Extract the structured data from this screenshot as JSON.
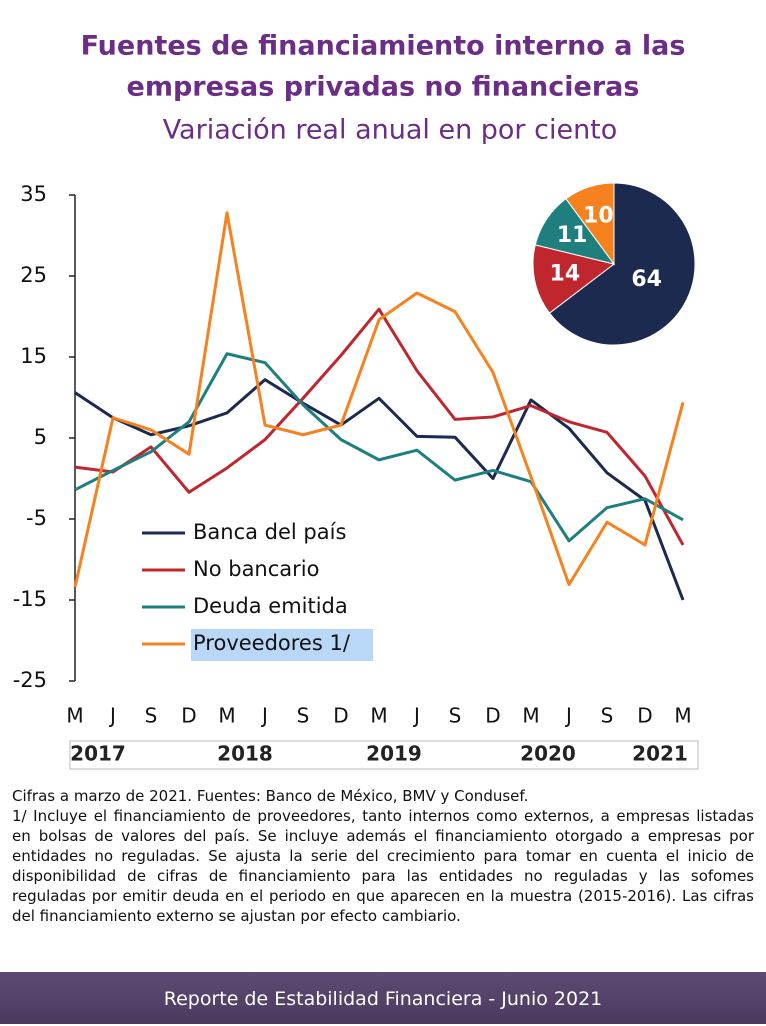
{
  "chart_data": [
    {
      "type": "line",
      "title": "Fuentes de financiamiento interno a las empresas privadas no financieras",
      "subtitle": "Variación real anual en por ciento",
      "categories": [
        "M",
        "J",
        "S",
        "D",
        "M",
        "J",
        "S",
        "D",
        "M",
        "J",
        "S",
        "D",
        "M",
        "J",
        "S",
        "D",
        "M"
      ],
      "year_labels": [
        "2017",
        "2018",
        "2019",
        "2020",
        "2021"
      ],
      "series": [
        {
          "name": "Banca del país",
          "color": "#1c2a4f",
          "values": [
            10.6,
            7.5,
            5.4,
            6.5,
            8.1,
            12.2,
            9.3,
            6.6,
            9.9,
            5.2,
            5.1,
            0.0,
            9.7,
            6.2,
            0.7,
            -2.7,
            -15.0
          ]
        },
        {
          "name": "No bancario",
          "color": "#c0262d",
          "values": [
            1.4,
            0.8,
            3.9,
            -1.7,
            1.3,
            4.8,
            9.9,
            15.2,
            20.9,
            13.3,
            7.3,
            7.6,
            9.0,
            7.0,
            5.7,
            0.3,
            -8.2
          ]
        },
        {
          "name": "Deuda emitida",
          "color": "#1f7f7f",
          "values": [
            -1.4,
            1.0,
            3.3,
            7.0,
            15.4,
            14.3,
            9.1,
            4.8,
            2.3,
            3.5,
            -0.2,
            1.0,
            -0.4,
            -7.7,
            -3.6,
            -2.5,
            -5.1
          ]
        },
        {
          "name": "Proveedores 1/",
          "color": "#f5821f",
          "values": [
            -13.4,
            7.5,
            6.0,
            3.0,
            32.8,
            6.6,
            5.4,
            6.6,
            19.6,
            22.9,
            20.6,
            13.1,
            0.2,
            -13.1,
            -5.4,
            -8.2,
            9.4
          ]
        }
      ],
      "ylim": [
        -25,
        35
      ],
      "yticks": [
        -25,
        -15,
        -5,
        5,
        15,
        25,
        35
      ],
      "grid": false,
      "legend": "lower-left"
    },
    {
      "type": "pie",
      "values": [
        64,
        14,
        11,
        10
      ],
      "colors": [
        "#1c2a4f",
        "#c0262d",
        "#1f7f7f",
        "#f5821f"
      ]
    }
  ],
  "notes": [
    "Cifras a marzo de 2021. Fuentes: Banco de México, BMV y Condusef.",
    "1/ Incluye el financiamiento de proveedores, tanto internos como externos, a empresas listadas en bolsas de valores del país. Se incluye además el financiamiento otorgado a empresas por entidades no reguladas. Se ajusta la serie del crecimiento para tomar en cuenta el inicio de disponibilidad de cifras de financiamiento para las entidades no reguladas y las sofomes reguladas por emitir deuda en el periodo en que aparecen en la muestra (2015-2016). Las cifras del financiamiento externo se ajustan por efecto cambiario."
  ],
  "footer": "Reporte de Estabilidad Financiera - Junio 2021"
}
